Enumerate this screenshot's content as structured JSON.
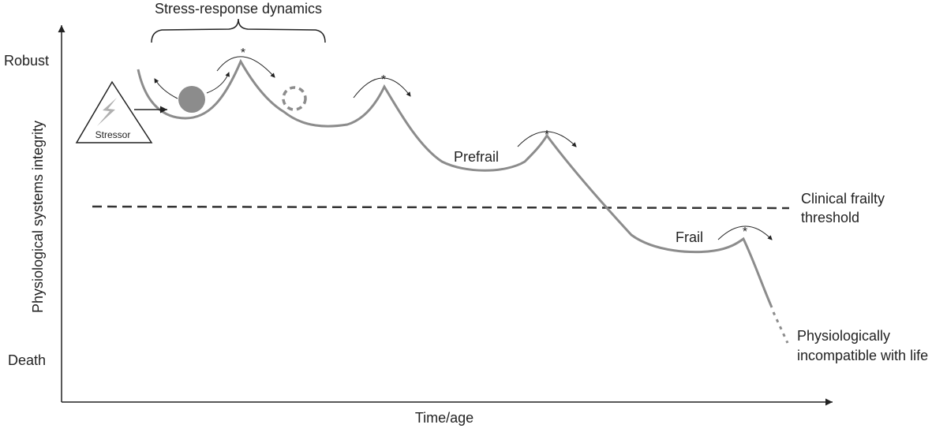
{
  "title": "Stress-response dynamics",
  "axes": {
    "y_label": "Physiological systems integrity",
    "y_top": "Robust",
    "y_bottom": "Death",
    "x_label": "Time/age"
  },
  "stressor": {
    "label": "Stressor",
    "icon": "lightning-bolt-icon"
  },
  "stages": {
    "prefrail": "Prefrail",
    "frail": "Frail"
  },
  "threshold": {
    "line1": "Clinical frailty",
    "line2": "threshold"
  },
  "end": {
    "line1": "Physiologically",
    "line2": "incompatible with life"
  },
  "peak_marker": "*",
  "colors": {
    "curve": "#8c8c8c",
    "ball": "#8c8c8c",
    "ink": "#222222",
    "threshold": "#333333"
  }
}
